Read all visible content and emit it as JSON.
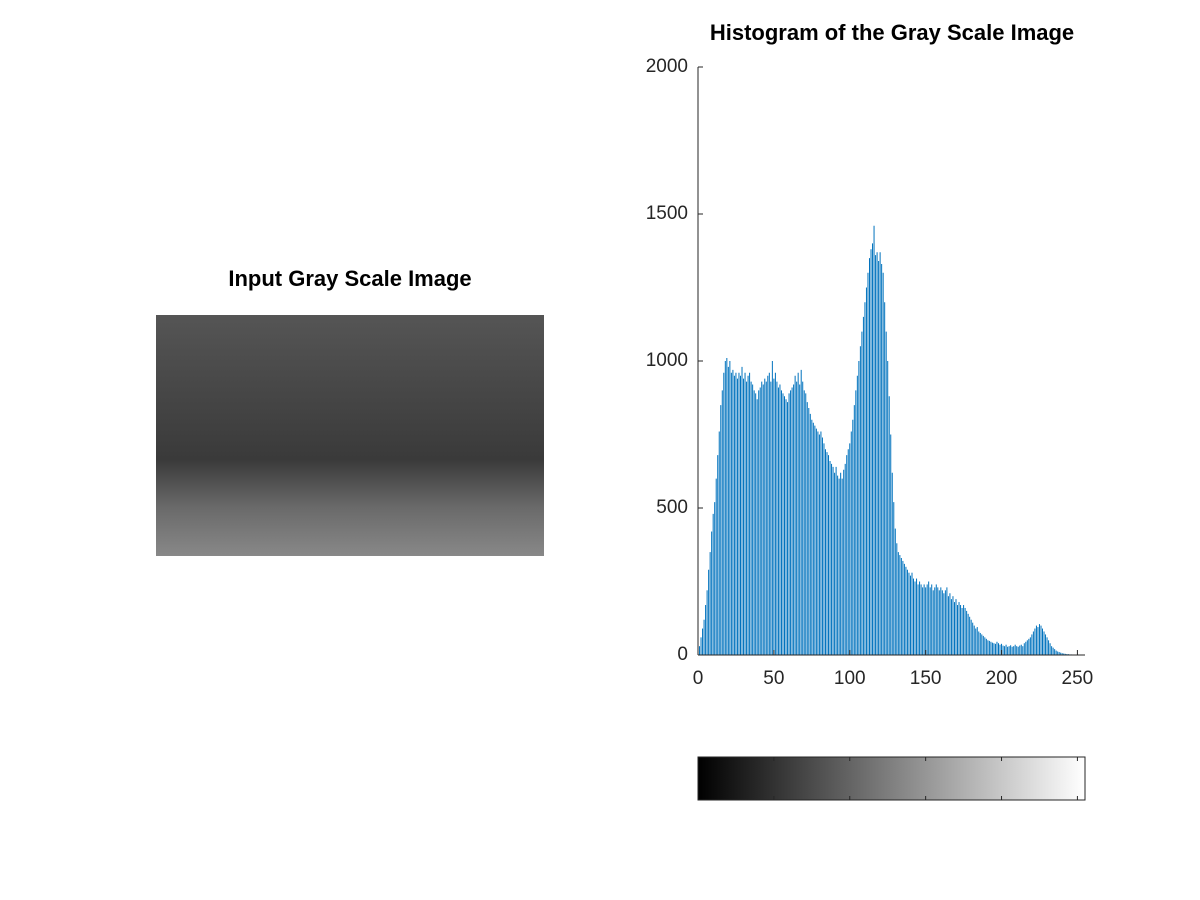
{
  "image": {
    "title": "Input Gray Scale Image"
  },
  "chart_data": {
    "type": "stem",
    "title": "Histogram of the Gray Scale Image",
    "color": "#0072bd",
    "colorbar": true,
    "xlim": [
      0,
      255
    ],
    "xticks": [
      0,
      50,
      100,
      150,
      200,
      250
    ],
    "ylim": [
      0,
      2000
    ],
    "yticks": [
      0,
      500,
      1000,
      1500,
      2000
    ],
    "x": [
      0,
      1,
      2,
      3,
      4,
      5,
      6,
      7,
      8,
      9,
      10,
      11,
      12,
      13,
      14,
      15,
      16,
      17,
      18,
      19,
      20,
      21,
      22,
      23,
      24,
      25,
      26,
      27,
      28,
      29,
      30,
      31,
      32,
      33,
      34,
      35,
      36,
      37,
      38,
      39,
      40,
      41,
      42,
      43,
      44,
      45,
      46,
      47,
      48,
      49,
      50,
      51,
      52,
      53,
      54,
      55,
      56,
      57,
      58,
      59,
      60,
      61,
      62,
      63,
      64,
      65,
      66,
      67,
      68,
      69,
      70,
      71,
      72,
      73,
      74,
      75,
      76,
      77,
      78,
      79,
      80,
      81,
      82,
      83,
      84,
      85,
      86,
      87,
      88,
      89,
      90,
      91,
      92,
      93,
      94,
      95,
      96,
      97,
      98,
      99,
      100,
      101,
      102,
      103,
      104,
      105,
      106,
      107,
      108,
      109,
      110,
      111,
      112,
      113,
      114,
      115,
      116,
      117,
      118,
      119,
      120,
      121,
      122,
      123,
      124,
      125,
      126,
      127,
      128,
      129,
      130,
      131,
      132,
      133,
      134,
      135,
      136,
      137,
      138,
      139,
      140,
      141,
      142,
      143,
      144,
      145,
      146,
      147,
      148,
      149,
      150,
      151,
      152,
      153,
      154,
      155,
      156,
      157,
      158,
      159,
      160,
      161,
      162,
      163,
      164,
      165,
      166,
      167,
      168,
      169,
      170,
      171,
      172,
      173,
      174,
      175,
      176,
      177,
      178,
      179,
      180,
      181,
      182,
      183,
      184,
      185,
      186,
      187,
      188,
      189,
      190,
      191,
      192,
      193,
      194,
      195,
      196,
      197,
      198,
      199,
      200,
      201,
      202,
      203,
      204,
      205,
      206,
      207,
      208,
      209,
      210,
      211,
      212,
      213,
      214,
      215,
      216,
      217,
      218,
      219,
      220,
      221,
      222,
      223,
      224,
      225,
      226,
      227,
      228,
      229,
      230,
      231,
      232,
      233,
      234,
      235,
      236,
      237,
      238,
      239,
      240,
      241,
      242,
      243,
      244,
      245,
      246,
      247,
      248,
      249,
      250,
      251,
      252,
      253,
      254,
      255
    ],
    "values": [
      50,
      30,
      60,
      90,
      120,
      170,
      220,
      290,
      350,
      420,
      480,
      520,
      600,
      680,
      760,
      850,
      900,
      960,
      1000,
      1010,
      980,
      1000,
      960,
      970,
      950,
      960,
      940,
      960,
      950,
      980,
      940,
      960,
      930,
      950,
      960,
      930,
      920,
      900,
      890,
      870,
      900,
      910,
      930,
      920,
      940,
      930,
      950,
      960,
      930,
      1000,
      940,
      960,
      930,
      910,
      920,
      900,
      890,
      880,
      870,
      860,
      890,
      900,
      910,
      920,
      950,
      930,
      960,
      920,
      970,
      930,
      900,
      890,
      860,
      840,
      820,
      800,
      790,
      780,
      770,
      760,
      750,
      760,
      740,
      720,
      700,
      690,
      680,
      660,
      650,
      640,
      620,
      640,
      610,
      600,
      620,
      600,
      630,
      650,
      680,
      700,
      720,
      760,
      800,
      850,
      900,
      950,
      1000,
      1050,
      1100,
      1150,
      1200,
      1250,
      1300,
      1350,
      1380,
      1400,
      1460,
      1360,
      1370,
      1340,
      1370,
      1330,
      1300,
      1200,
      1100,
      1000,
      880,
      750,
      620,
      520,
      430,
      380,
      350,
      340,
      330,
      320,
      310,
      300,
      290,
      280,
      270,
      280,
      260,
      250,
      260,
      240,
      250,
      240,
      230,
      240,
      230,
      240,
      250,
      230,
      240,
      220,
      230,
      240,
      230,
      220,
      230,
      220,
      210,
      220,
      230,
      200,
      210,
      190,
      200,
      180,
      190,
      170,
      180,
      170,
      160,
      170,
      160,
      150,
      140,
      130,
      120,
      110,
      100,
      90,
      95,
      80,
      75,
      70,
      65,
      60,
      55,
      50,
      48,
      45,
      42,
      40,
      38,
      45,
      40,
      35,
      38,
      32,
      30,
      35,
      28,
      30,
      33,
      28,
      30,
      35,
      30,
      28,
      32,
      35,
      30,
      40,
      45,
      50,
      55,
      60,
      70,
      80,
      90,
      100,
      95,
      105,
      100,
      90,
      80,
      70,
      60,
      50,
      40,
      30,
      25,
      20,
      15,
      12,
      10,
      8,
      6,
      5,
      4,
      3,
      3,
      2,
      2,
      1,
      1,
      1,
      0,
      0,
      0,
      0,
      0,
      0
    ]
  }
}
